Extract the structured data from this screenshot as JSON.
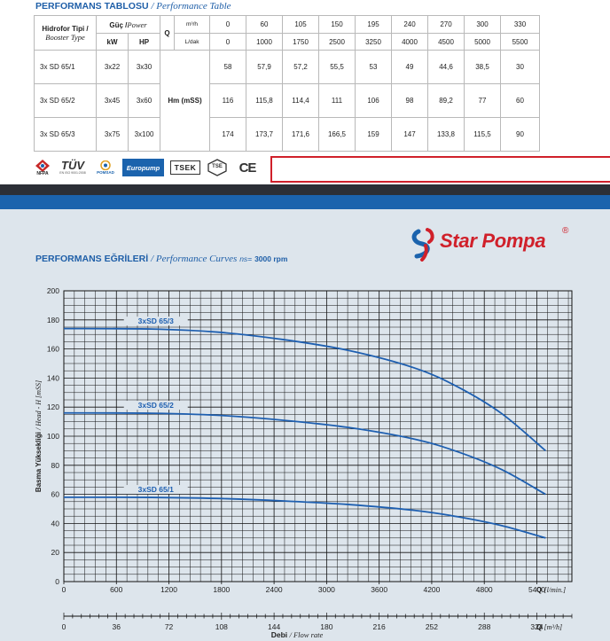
{
  "table": {
    "title": "PERFORMANS TABLOSU",
    "title_en": "/ Performance Table",
    "hdr_type_1": "Hidrofor Tipi /",
    "hdr_type_2": "Booster Type",
    "hdr_power_1": "Güç /",
    "hdr_power_2": "Power",
    "hdr_kw": "kW",
    "hdr_hp": "HP",
    "hdr_q": "Q",
    "hdr_unit1": "m³/h",
    "hdr_unit2": "L/dak",
    "q_m3h": [
      "0",
      "60",
      "105",
      "150",
      "195",
      "240",
      "270",
      "300",
      "330"
    ],
    "q_ldak": [
      "0",
      "1000",
      "1750",
      "2500",
      "3250",
      "4000",
      "4500",
      "5000",
      "5500"
    ],
    "hm_label": "Hm (mSS)",
    "rows": [
      {
        "type": "3x SD 65/1",
        "kw": "3x22",
        "hp": "3x30",
        "values": [
          "58",
          "57,9",
          "57,2",
          "55,5",
          "53",
          "49",
          "44,6",
          "38,5",
          "30"
        ]
      },
      {
        "type": "3x SD 65/2",
        "kw": "3x45",
        "hp": "3x60",
        "values": [
          "116",
          "115,8",
          "114,4",
          "111",
          "106",
          "98",
          "89,2",
          "77",
          "60"
        ]
      },
      {
        "type": "3x SD 65/3",
        "kw": "3x75",
        "hp": "3x100",
        "values": [
          "174",
          "173,7",
          "171,6",
          "166,5",
          "159",
          "147",
          "133,8",
          "115,5",
          "90"
        ]
      }
    ]
  },
  "logos": {
    "nfpa": "NFPA",
    "tuv": "TÜV",
    "tuv_sub": "EN ISO 9001:2008",
    "pompad": "POMSAD",
    "europump": "Europump",
    "tsek": "TSEK",
    "tse": "TSE",
    "ce": "CE"
  },
  "brand": {
    "name": "Star Pompa",
    "reg": "®"
  },
  "curves_header": {
    "title": "PERFORMANS EĞRİLERİ",
    "title_en": "/ Performance Curves",
    "rpm_label": "ns=",
    "rpm_value": "3000 rpm"
  },
  "chart_data": {
    "type": "line",
    "title": "",
    "ylabel": "Basma Yüksekliği / Head - H [mSS]",
    "ylabel_main": "Basma Yüksekliği",
    "ylabel_en": "/ Head - H [mSS]",
    "xlabel": "Debi / Flow rate",
    "xlabel_main": "Debi",
    "xlabel_en": "/ Flow rate",
    "x_unit_lmin": "Q [l/min.]",
    "x_unit_m3h": "Q [m³/h]",
    "x_unit_lmin_q": "Q",
    "x_unit_lmin_u": "[l/min.]",
    "x_unit_m3h_q": "Q",
    "x_unit_m3h_u": "[m³/h]",
    "xlim": [
      0,
      5800
    ],
    "ylim": [
      0,
      200
    ],
    "x_ticks_lmin": [
      "0",
      "600",
      "1200",
      "1800",
      "2400",
      "3000",
      "3600",
      "4200",
      "4800",
      "5400"
    ],
    "x_ticks_m3h": [
      "0",
      "36",
      "72",
      "108",
      "144",
      "180",
      "216",
      "252",
      "288",
      "324"
    ],
    "y_ticks": [
      "0",
      "20",
      "40",
      "60",
      "80",
      "100",
      "120",
      "140",
      "160",
      "180",
      "200"
    ],
    "grid": true,
    "x": [
      0,
      1000,
      1750,
      2500,
      3250,
      4000,
      4500,
      5000,
      5500
    ],
    "series": [
      {
        "name": "3xSD 65/1",
        "values": [
          58,
          57.9,
          57.2,
          55.5,
          53,
          49,
          44.6,
          38.5,
          30
        ]
      },
      {
        "name": "3xSD 65/2",
        "values": [
          116,
          115.8,
          114.4,
          111,
          106,
          98,
          89.2,
          77,
          60
        ]
      },
      {
        "name": "3xSD 65/3",
        "values": [
          174,
          173.7,
          171.6,
          166.5,
          159,
          147,
          133.8,
          115.5,
          90
        ]
      }
    ],
    "line_color": "#1e5fb0"
  }
}
